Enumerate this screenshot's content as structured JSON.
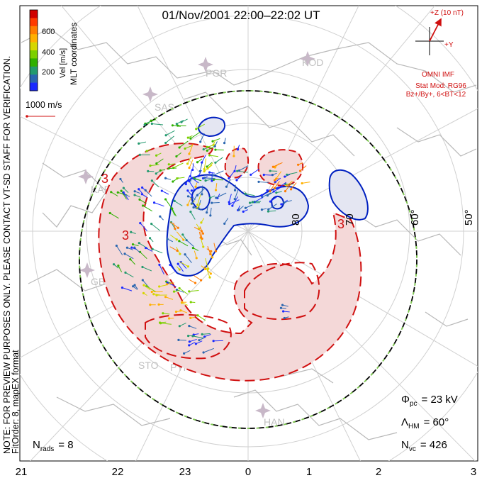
{
  "title": "01/Nov/2001 22:00–22:02 UT",
  "left_notes": {
    "line1": "NOTE: FOR PREVIEW PURPOSES ONLY. PLEASE CONTACT VT-SD STAFF FOR VERIFICATION.",
    "line2": "FitOrder: 8, mapEX format"
  },
  "coord_label": "MLT coordinates",
  "colorbar": {
    "label": "Vel [m/s]",
    "ticks": [
      "600",
      "400",
      "200"
    ],
    "colors": [
      "#d00000",
      "#ff3a00",
      "#ff7d00",
      "#ffb000",
      "#d6d600",
      "#7cd000",
      "#2fb000",
      "#239a6e",
      "#2a66b0",
      "#1a2aff"
    ]
  },
  "scale_vector": {
    "label": "1000 m/s"
  },
  "imf": {
    "z_label": "+Z (10 nT)",
    "y_label": "+Y",
    "source": "OMNI IMF",
    "model_line1": "Stat Mod: RG96",
    "model_line2": "Bz+/By+, 6<BT<12"
  },
  "stations": [
    "PGR",
    "KOD",
    "SAS",
    "KAP",
    "GBR",
    "STO",
    "PYK",
    "HAN"
  ],
  "lat_labels": [
    "80",
    "70",
    "60°",
    "50°"
  ],
  "contour_labels": [
    "3",
    "3",
    "3"
  ],
  "stats": {
    "phi_sym": "Φ",
    "phi_sub": "pc",
    "phi_val": "= 23 kV",
    "lam_sym": "Λ",
    "lam_sub": "HM",
    "lam_val": "= 60°",
    "nvc_sym": "N",
    "nvc_sub": "vc",
    "nvc_val": "= 426",
    "nrads_sym": "N",
    "nrads_sub": "rads",
    "nrads_val": "= 8"
  },
  "mlt_axis": [
    "21",
    "22",
    "23",
    "0",
    "1",
    "2",
    "3"
  ],
  "colors": {
    "negative_contour": "#0020c0",
    "positive_contour": "#d01010",
    "negative_fill": "#e4e6f2",
    "positive_fill": "#f4d8d8",
    "hm_boundary": "#7ec850",
    "coast": "#b8b8b8",
    "grid": "#d0d0d0"
  }
}
